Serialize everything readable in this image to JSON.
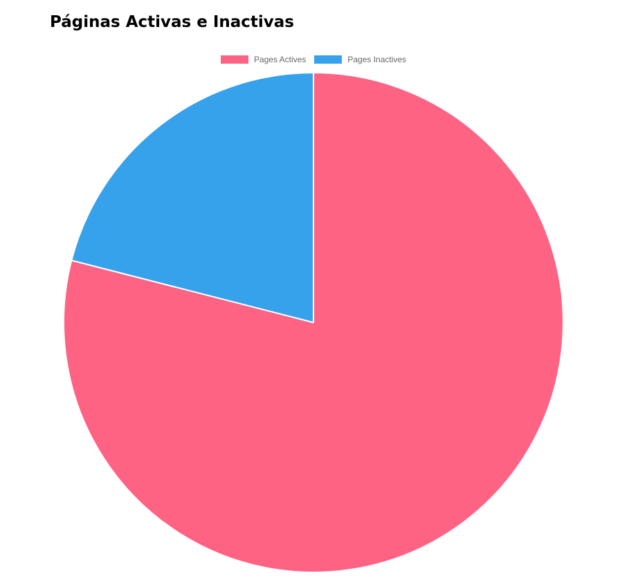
{
  "page": {
    "title": "Páginas Activas e Inactivas"
  },
  "chart_data": {
    "type": "pie",
    "title": "Páginas Activas e Inactivas",
    "categories": [
      "Pages Actives",
      "Pages Inactives"
    ],
    "values": [
      79,
      21
    ],
    "colors": [
      "#ff6384",
      "#36a2eb"
    ],
    "slice_border_color": "#ffffff",
    "start_angle_deg": -90,
    "legend_position": "top"
  }
}
